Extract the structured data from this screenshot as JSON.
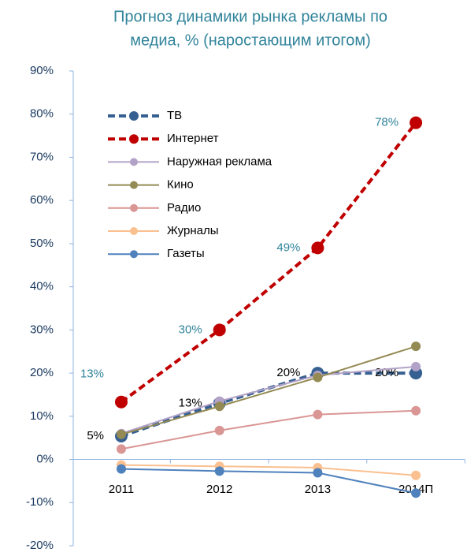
{
  "chart_data": {
    "type": "line",
    "title": [
      "Прогноз динамики рынка рекламы по",
      "медиа, % (наростающим итогом)"
    ],
    "categories": [
      "2011",
      "2012",
      "2013",
      "2014П"
    ],
    "ylim": [
      -20,
      90
    ],
    "yticks": [
      {
        "value": -20,
        "label": "-20%"
      },
      {
        "value": -10,
        "label": "-10%"
      },
      {
        "value": 0,
        "label": "0%"
      },
      {
        "value": 10,
        "label": "10%"
      },
      {
        "value": 20,
        "label": "20%"
      },
      {
        "value": 30,
        "label": "30%"
      },
      {
        "value": 40,
        "label": "40%"
      },
      {
        "value": 50,
        "label": "50%"
      },
      {
        "value": 60,
        "label": "60%"
      },
      {
        "value": 70,
        "label": "70%"
      },
      {
        "value": 80,
        "label": "80%"
      },
      {
        "value": 90,
        "label": "90%"
      }
    ],
    "legend": "upper left",
    "series": [
      {
        "name": "ТВ",
        "color": "#376092",
        "dashed": true,
        "values": [
          5.4,
          13,
          20,
          20
        ],
        "value_labels": [
          "5%",
          "13%",
          "20%",
          "20%"
        ],
        "label_color": "#000000"
      },
      {
        "name": "Интернет",
        "color": "#c00000",
        "dashed": true,
        "values": [
          13.3,
          30,
          49,
          78
        ],
        "value_labels": [
          "13%",
          "30%",
          "49%",
          "78%"
        ],
        "label_color": "#31849b"
      },
      {
        "name": "Наружная реклама",
        "color": "#b3a2c7",
        "values": [
          6,
          13.5,
          19.5,
          21.5
        ]
      },
      {
        "name": "Кино",
        "color": "#948a54",
        "values": [
          5.8,
          12.3,
          19,
          26.2
        ]
      },
      {
        "name": "Радио",
        "color": "#d99694",
        "values": [
          2.4,
          6.7,
          10.4,
          11.3
        ]
      },
      {
        "name": "Журналы",
        "color": "#fac090",
        "values": [
          -1.3,
          -1.6,
          -1.9,
          -3.7
        ]
      },
      {
        "name": "Газеты",
        "color": "#4f81bd",
        "values": [
          -2.2,
          -2.7,
          -3.1,
          -7.8
        ]
      }
    ]
  }
}
